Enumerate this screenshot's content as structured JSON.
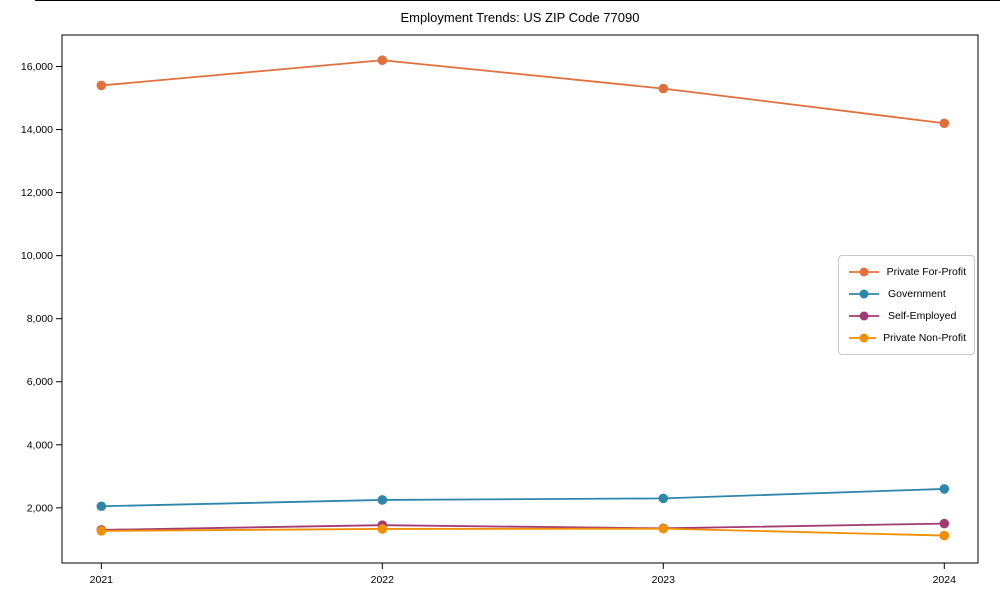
{
  "chart_data": {
    "type": "line",
    "title": "Employment Trends: US ZIP Code 77090",
    "xlabel": "",
    "ylabel": "",
    "x": [
      2021,
      2022,
      2023,
      2024
    ],
    "xticklabels": [
      "2021",
      "2022",
      "2023",
      "2024"
    ],
    "yticks": [
      2000,
      4000,
      6000,
      8000,
      10000,
      12000,
      14000,
      16000
    ],
    "ytick_format": "thousands-comma",
    "xlim": [
      2020.86,
      2024.12
    ],
    "ylim": [
      250,
      17000
    ],
    "grid": false,
    "legend_position": "middle-right",
    "series": [
      {
        "name": "Private For-Profit",
        "color": "#E2703C",
        "values": [
          15400,
          16200,
          15300,
          14200
        ]
      },
      {
        "name": "Government",
        "color": "#2E86AB",
        "values": [
          2050,
          2250,
          2300,
          2600
        ]
      },
      {
        "name": "Self-Employed",
        "color": "#A23B72",
        "values": [
          1300,
          1450,
          1350,
          1500
        ]
      },
      {
        "name": "Private Non-Profit",
        "color": "#F18F01",
        "values": [
          1270,
          1330,
          1340,
          1120
        ]
      }
    ]
  }
}
